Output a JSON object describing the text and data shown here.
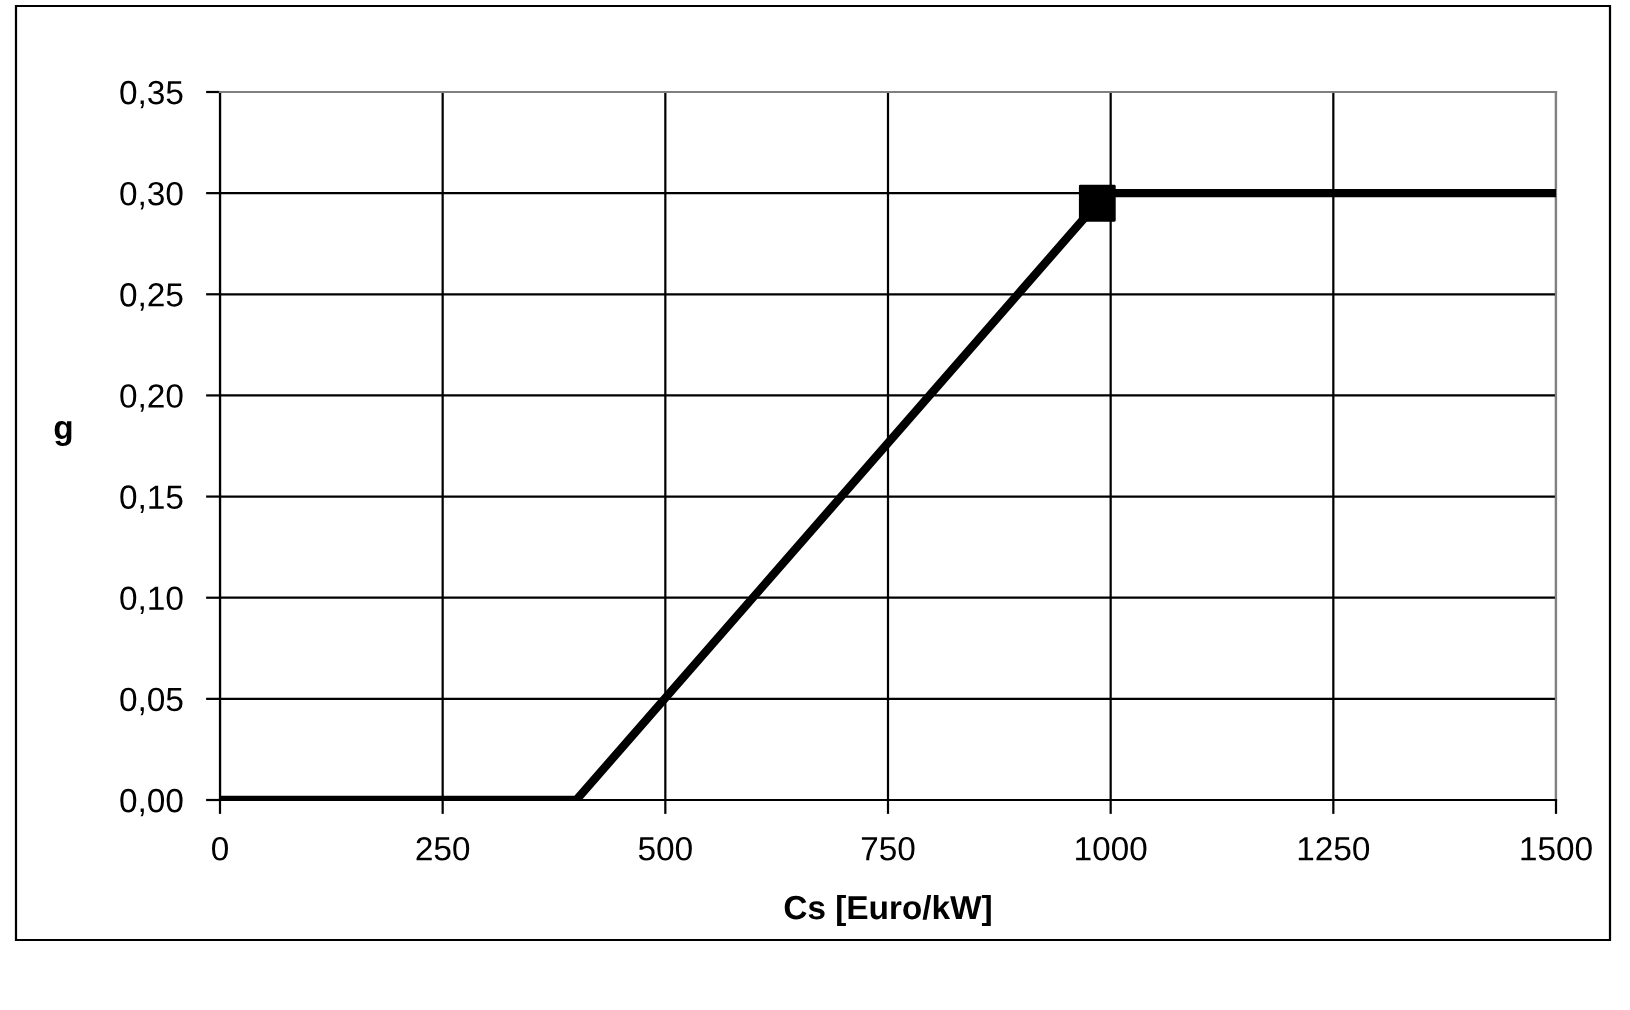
{
  "chart_data": {
    "type": "line",
    "xlabel": "Cs [Euro/kW]",
    "ylabel": "g",
    "series": [
      {
        "color": "#000000",
        "marker": "none",
        "x": [
          0,
          400,
          985,
          1000,
          1500
        ],
        "values": [
          0,
          0,
          0.295,
          0.3,
          0.3
        ]
      },
      {
        "type": "scatter",
        "color": "#000000",
        "marker": "square",
        "x": [
          985
        ],
        "values": [
          0.295
        ]
      }
    ],
    "xlim": [
      0,
      1500
    ],
    "xticks": [
      0,
      250,
      500,
      750,
      1000,
      1250,
      1500
    ],
    "ylim": [
      0,
      0.35
    ],
    "yticks": [
      {
        "value": 0,
        "label": "0,00"
      },
      {
        "value": 0.05,
        "label": "0,05"
      },
      {
        "value": 0.1,
        "label": "0,10"
      },
      {
        "value": 0.15,
        "label": "0,15"
      },
      {
        "value": 0.2,
        "label": "0,20"
      },
      {
        "value": 0.25,
        "label": "0,25"
      },
      {
        "value": 0.3,
        "label": "0,30"
      },
      {
        "value": 0.35,
        "label": "0,35"
      }
    ],
    "grid": true,
    "legend": false
  }
}
